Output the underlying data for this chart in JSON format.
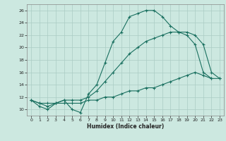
{
  "title": "",
  "xlabel": "Humidex (Indice chaleur)",
  "bg_color": "#cce8e0",
  "grid_color": "#aaccC4",
  "line_color": "#1a7060",
  "xlim": [
    -0.5,
    23.5
  ],
  "ylim": [
    9,
    27
  ],
  "xticks": [
    0,
    1,
    2,
    3,
    4,
    5,
    6,
    7,
    8,
    9,
    10,
    11,
    12,
    13,
    14,
    15,
    16,
    17,
    18,
    19,
    20,
    21,
    22,
    23
  ],
  "yticks": [
    10,
    12,
    14,
    16,
    18,
    20,
    22,
    24,
    26
  ],
  "line1_x": [
    0,
    1,
    2,
    3,
    4,
    5,
    6,
    7,
    8,
    9,
    10,
    11,
    12,
    13,
    14,
    15,
    16,
    17,
    18,
    19,
    20,
    21,
    22
  ],
  "line1_y": [
    11.5,
    10.5,
    10.0,
    11.0,
    11.5,
    10.0,
    9.5,
    12.5,
    14.0,
    17.5,
    21.0,
    22.5,
    25.0,
    25.5,
    26.0,
    26.0,
    25.0,
    23.5,
    22.5,
    22.0,
    20.5,
    16.0,
    15.0
  ],
  "line2_x": [
    0,
    1,
    2,
    3,
    4,
    5,
    6,
    7,
    8,
    9,
    10,
    11,
    12,
    13,
    14,
    15,
    16,
    17,
    18,
    19,
    20,
    21,
    22,
    23
  ],
  "line2_y": [
    11.5,
    11.0,
    11.0,
    11.0,
    11.5,
    11.5,
    11.5,
    12.0,
    13.0,
    14.5,
    16.0,
    17.5,
    19.0,
    20.0,
    21.0,
    21.5,
    22.0,
    22.5,
    22.5,
    22.5,
    22.0,
    20.5,
    16.0,
    15.0
  ],
  "line3_x": [
    0,
    1,
    2,
    3,
    4,
    5,
    6,
    7,
    8,
    9,
    10,
    11,
    12,
    13,
    14,
    15,
    16,
    17,
    18,
    19,
    20,
    21,
    22,
    23
  ],
  "line3_y": [
    11.5,
    11.0,
    10.5,
    11.0,
    11.0,
    11.0,
    11.0,
    11.5,
    11.5,
    12.0,
    12.0,
    12.5,
    13.0,
    13.0,
    13.5,
    13.5,
    14.0,
    14.5,
    15.0,
    15.5,
    16.0,
    15.5,
    15.0,
    15.0
  ]
}
